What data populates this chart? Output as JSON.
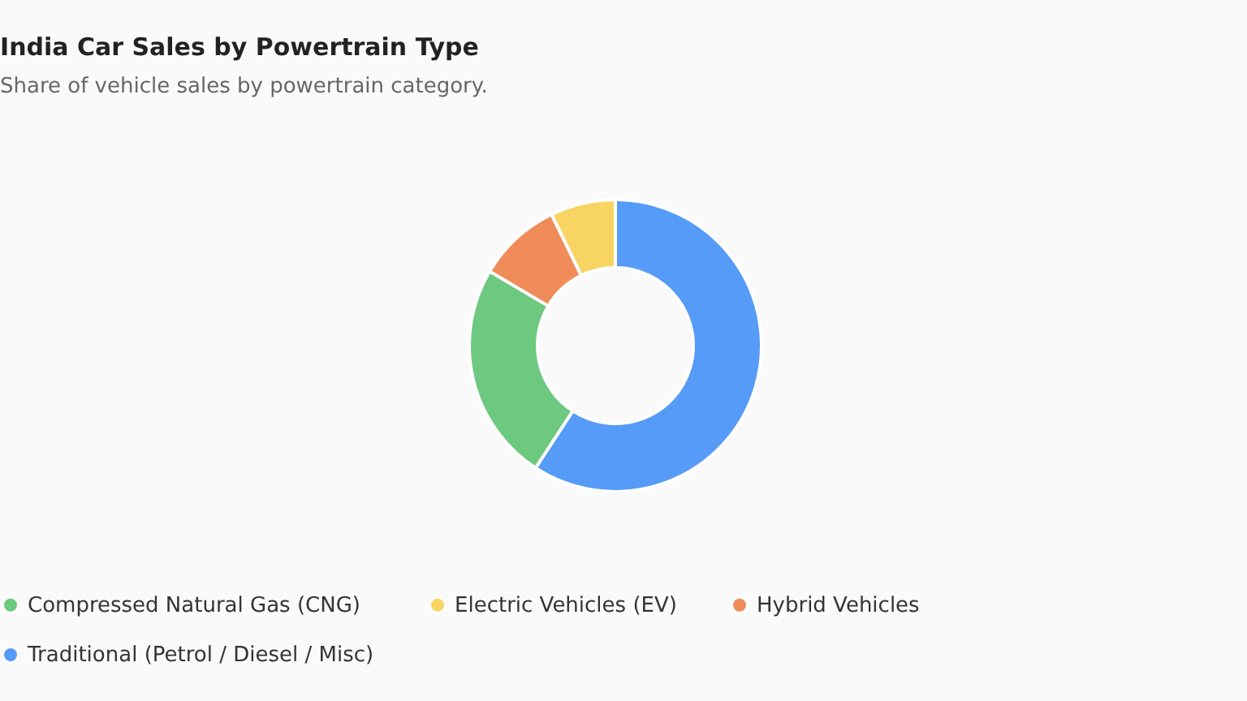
{
  "chart_data": {
    "type": "donut",
    "title": "India Car Sales by Powertrain Type",
    "subtitle": "Share of vehicle sales by powertrain category.",
    "categories": [
      "Traditional (Petrol / Diesel / Misc)",
      "Compressed Natural Gas (CNG)",
      "Hybrid Vehicles",
      "Electric Vehicles (EV)"
    ],
    "values": [
      59.2,
      24.3,
      9.3,
      7.2
    ],
    "colors": [
      "#559bf7",
      "#6cc97f",
      "#f08c5a",
      "#f8d562"
    ],
    "legend": "bottom"
  }
}
